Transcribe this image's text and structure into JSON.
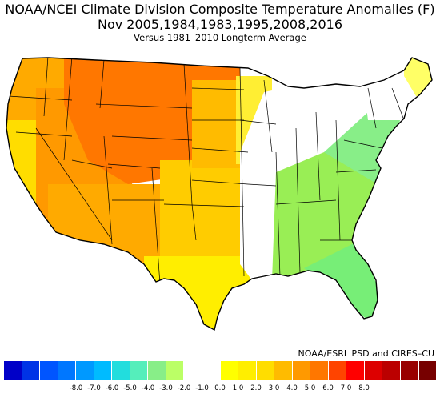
{
  "title": {
    "line1": "NOAA/NCEI Climate Division Composite Temperature Anomalies (F)",
    "line2": "Nov   2005,1984,1983,1995,2008,2016",
    "line3": "Versus 1981–2010 Longterm Average"
  },
  "credit": "NOAA/ESRL PSD and CIRES–CU",
  "colorbar": {
    "colors": [
      "#0000c8",
      "#0033e6",
      "#0055ff",
      "#0077ff",
      "#0099ff",
      "#00bbff",
      "#22dddd",
      "#55eebb",
      "#88ee88",
      "#bbff66",
      "#ffffff",
      "#ffffff",
      "#ffff00",
      "#ffee00",
      "#ffdd00",
      "#ffbb00",
      "#ff9900",
      "#ff7700",
      "#ff4400",
      "#ff0000",
      "#dd0000",
      "#bb0000",
      "#990000",
      "#770000"
    ],
    "ticks": [
      "-8.0",
      "-7.0",
      "-6.0",
      "-5.0",
      "-4.0",
      "-3.0",
      "-2.0",
      "-1.0",
      "0.0",
      "1.0",
      "2.0",
      "3.0",
      "4.0",
      "5.0",
      "6.0",
      "7.0",
      "8.0"
    ]
  },
  "map_regions": [
    {
      "name": "pacific-northwest",
      "fill": "#ffaa00"
    },
    {
      "name": "california-coast",
      "fill": "#ffdd00"
    },
    {
      "name": "great-basin",
      "fill": "#ff9900"
    },
    {
      "name": "northern-rockies",
      "fill": "#ff7700"
    },
    {
      "name": "southwest",
      "fill": "#ffaa00"
    },
    {
      "name": "southern-plains",
      "fill": "#ffcc00"
    },
    {
      "name": "texas-gulf",
      "fill": "#ffee00"
    },
    {
      "name": "northern-plains",
      "fill": "#ffbb00"
    },
    {
      "name": "upper-midwest",
      "fill": "#ffee33"
    },
    {
      "name": "midwest-neutral",
      "fill": "#ffffff"
    },
    {
      "name": "southeast",
      "fill": "#99ee55"
    },
    {
      "name": "florida",
      "fill": "#77ee77"
    },
    {
      "name": "mid-atlantic",
      "fill": "#88ee88"
    },
    {
      "name": "new-england",
      "fill": "#ffffff"
    },
    {
      "name": "maine",
      "fill": "#ffff66"
    }
  ]
}
